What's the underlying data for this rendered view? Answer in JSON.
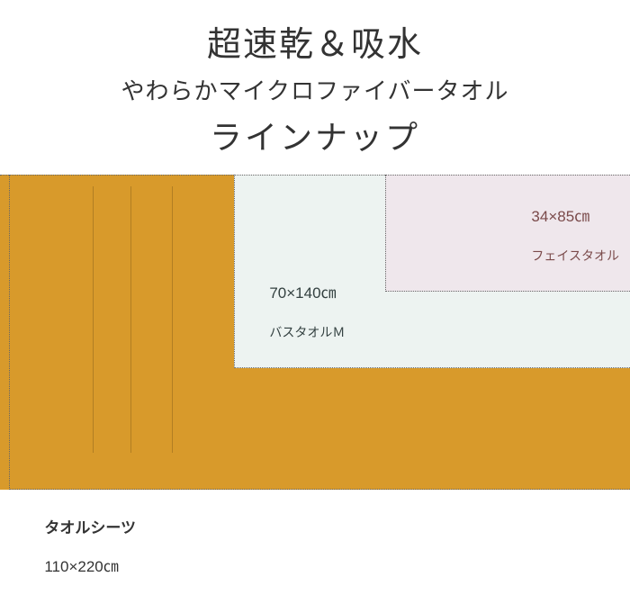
{
  "header": {
    "title1": "超速乾＆吸水",
    "title2": "やわらかマイクロファイバータオル",
    "title3": "ラインナップ"
  },
  "colors": {
    "xl": "#d89a2b",
    "l": "#d89a2b",
    "m": "#edf3f1",
    "s": "#efe7ec",
    "text_chart": "#333333",
    "s_text": "#7a4a4a",
    "m_text": "#334040"
  },
  "boxes": {
    "s": {
      "size": "34×85㎝",
      "name": "フェイスタオル"
    },
    "m": {
      "size": "70×140㎝",
      "name": "バスタオルＭ"
    },
    "l": {
      "name": "タオルシーツ",
      "size": "110×220㎝"
    }
  }
}
